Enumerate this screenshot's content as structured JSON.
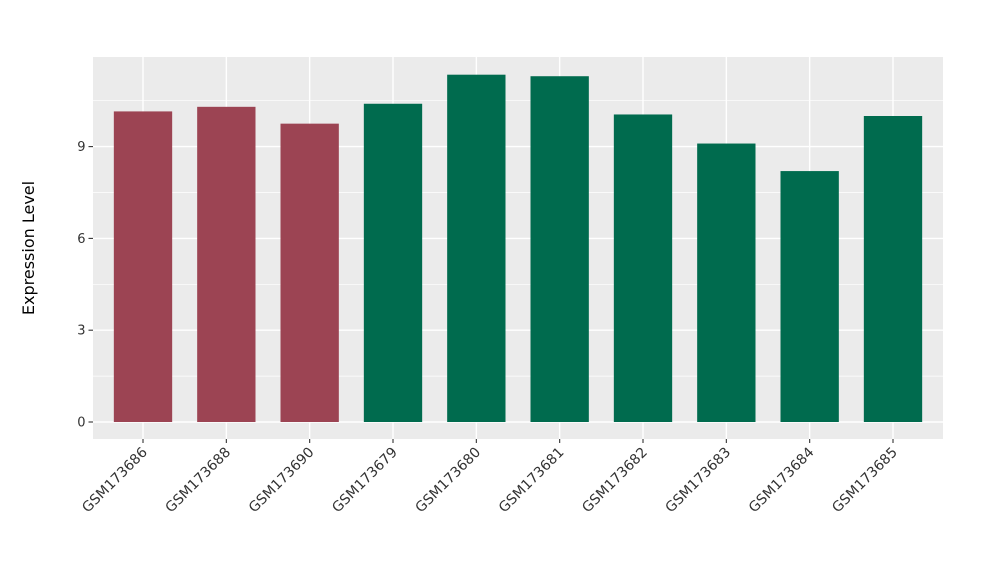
{
  "chart_data": {
    "type": "bar",
    "title": "",
    "xlabel": "",
    "ylabel": "Expression Level",
    "categories": [
      "GSM173686",
      "GSM173688",
      "GSM173690",
      "GSM173679",
      "GSM173680",
      "GSM173681",
      "GSM173682",
      "GSM173683",
      "GSM173684",
      "GSM173685"
    ],
    "values": [
      10.15,
      10.3,
      9.75,
      10.4,
      11.35,
      11.3,
      10.05,
      9.1,
      8.2,
      10.0
    ],
    "bar_colors": [
      "#9C4453",
      "#9C4453",
      "#9C4453",
      "#006B4E",
      "#006B4E",
      "#006B4E",
      "#006B4E",
      "#006B4E",
      "#006B4E",
      "#006B4E"
    ],
    "group_color_map": {
      "maroon": "#9C4453",
      "green": "#006B4E"
    },
    "yticks": [
      0,
      3,
      6,
      9
    ],
    "yticks_minor": [
      1.5,
      4.5,
      7.5,
      10.5
    ],
    "ylim": [
      -0.55,
      11.93
    ],
    "grid": true,
    "legend": "none",
    "panel_bg": "#EBEBEB",
    "grid_color": "#FFFFFF",
    "axis_text_color": "#333333",
    "tick_mark_color": "#333333",
    "bar_width_fraction": 0.7
  }
}
